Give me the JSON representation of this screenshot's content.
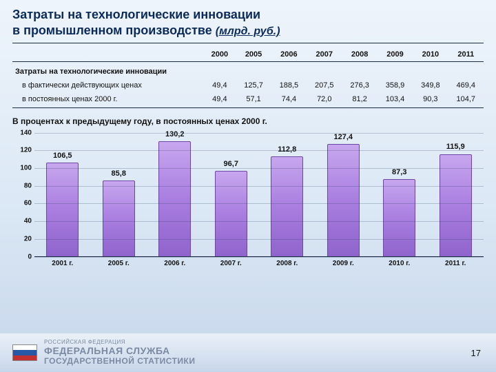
{
  "title_line1": "Затраты на технологические инновации",
  "title_line2_prefix": "в промышленном производстве ",
  "title_units": "(млрд. руб.)",
  "years": [
    "2000",
    "2005",
    "2006",
    "2007",
    "2008",
    "2009",
    "2010",
    "2011"
  ],
  "section_label": "Затраты на технологические инновации",
  "rows": [
    {
      "label": "в фактически действующих ценах",
      "vals": [
        "49,4",
        "125,7",
        "188,5",
        "207,5",
        "276,3",
        "358,9",
        "349,8",
        "469,4"
      ]
    },
    {
      "label": "в постоянных ценах 2000 г.",
      "vals": [
        "49,4",
        "57,1",
        "74,4",
        "72,0",
        "81,2",
        "103,4",
        "90,3",
        "104,7"
      ]
    }
  ],
  "chart": {
    "title": "В процентах к предыдущему году, в постоянных ценах 2000 г.",
    "type": "bar",
    "categories": [
      "2001 г.",
      "2005 г.",
      "2006 г.",
      "2007 г.",
      "2008 г.",
      "2009 г.",
      "2010 г.",
      "2011 г."
    ],
    "values": [
      106.5,
      85.8,
      130.2,
      96.7,
      112.8,
      127.4,
      87.3,
      115.9
    ],
    "value_labels": [
      "106,5",
      "85,8",
      "130,2",
      "96,7",
      "112,8",
      "127,4",
      "87,3",
      "115,9"
    ],
    "ylim": [
      0,
      140
    ],
    "ytick_step": 20,
    "bar_fill_top": "#c7a7ee",
    "bar_fill_mid": "#a97ee0",
    "bar_fill_bot": "#8f64cc",
    "bar_border": "#6b47a3",
    "grid_color": "rgba(40,60,90,.25)",
    "label_fontsize": 11,
    "tick_fontsize": 10
  },
  "footer": {
    "country": "РОССИЙСКАЯ ФЕДЕРАЦИЯ",
    "line1": "ФЕДЕРАЛЬНАЯ СЛУЖБА",
    "line2": "ГОСУДАРСТВЕННОЙ СТАТИСТИКИ",
    "flag_colors": [
      "#ffffff",
      "#2658a6",
      "#c33030"
    ]
  },
  "page_number": "17"
}
